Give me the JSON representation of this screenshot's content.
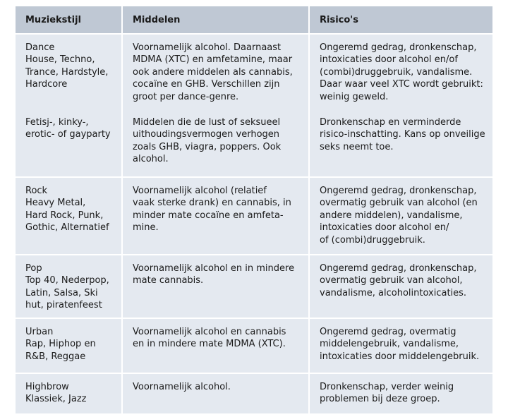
{
  "headers": {
    "col1": "Muziekstijl",
    "col2": "Middelen",
    "col3": "Risico's"
  },
  "rows": [
    {
      "style": "Dance\nHouse, Techno,\nTrance, Hardstyle,\nHardcore",
      "means": "Voornamelijk alcohol. Daarnaast\nMDMA (XTC) en amfetamine, maar\nook andere middelen als cannabis,\ncocaïne en GHB. Verschillen zijn\ngroot per dance-genre.",
      "risks": "Ongeremd gedrag, dronkenschap,\nintoxicaties door alcohol en/of\n(combi)druggebruik, vandalisme.\nDaar waar veel XTC wordt gebruikt:\nweinig geweld."
    },
    {
      "style": "Fetisj-, kinky-,\nerotic- of gayparty",
      "means": "Middelen die de lust of seksueel\nuithoudingsvermogen verhogen\nzoals GHB, viagra, poppers. Ook\nalcohol.",
      "risks": "Dronkenschap en verminderde\nrisico-inschatting. Kans op onveilige\nseks neemt toe."
    },
    {
      "style": "Rock\nHeavy Metal,\nHard Rock, Punk,\nGothic, Alternatief",
      "means": "Voornamelijk alcohol (relatief\nvaak sterke drank) en cannabis, in\nminder mate cocaïne en amfeta-\nmine.",
      "risks": "Ongeremd gedrag, dronkenschap,\novermatig gebruik van alcohol (en\nandere middelen), vandalisme,\nintoxicaties door alcohol en/\nof (combi)druggebruik."
    },
    {
      "style": "Pop\nTop 40, Nederpop,\nLatin, Salsa, Ski\nhut, piratenfeest",
      "means": "Voornamelijk alcohol en in mindere\nmate cannabis.",
      "risks": "Ongeremd gedrag, dronkenschap,\novermatig gebruik van alcohol,\nvandalisme, alcoholintoxicaties."
    },
    {
      "style": "Urban\nRap, Hiphop en\nR&B, Reggae",
      "means": "Voornamelijk alcohol en cannabis\nen in mindere mate MDMA (XTC).",
      "risks": "Ongeremd gedrag, overmatig\nmiddelengebruik, vandalisme,\nintoxicaties door middelengebruik."
    },
    {
      "style": "Highbrow\nKlassiek, Jazz",
      "means": "Voornamelijk alcohol.",
      "risks": "Dronkenschap, verder weinig\nproblemen bij deze groep."
    }
  ]
}
